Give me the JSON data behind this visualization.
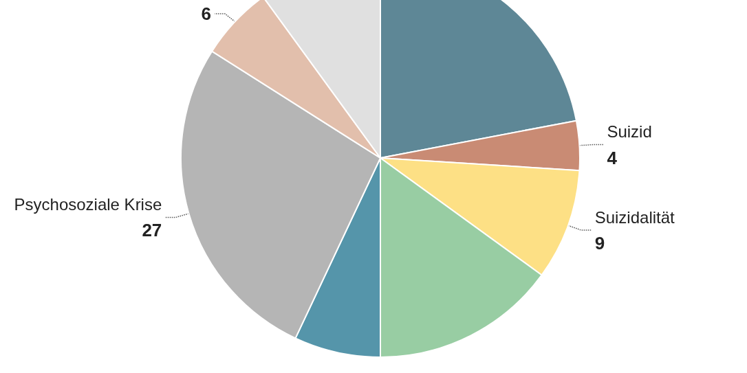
{
  "chart_data": {
    "type": "pie",
    "categories": [
      null,
      "Suizid",
      "Suizidalität",
      null,
      null,
      "Psychosoziale Krise",
      null,
      null
    ],
    "values": [
      22,
      4,
      9,
      15,
      7,
      27,
      6,
      10
    ],
    "value_labels": [
      null,
      "4",
      "9",
      null,
      null,
      "27",
      "6",
      null
    ],
    "colors": [
      "#5e8796",
      "#c98b74",
      "#fde085",
      "#98cda3",
      "#5595aa",
      "#b5b5b5",
      "#e2bfac",
      "#e0e0e0"
    ]
  }
}
